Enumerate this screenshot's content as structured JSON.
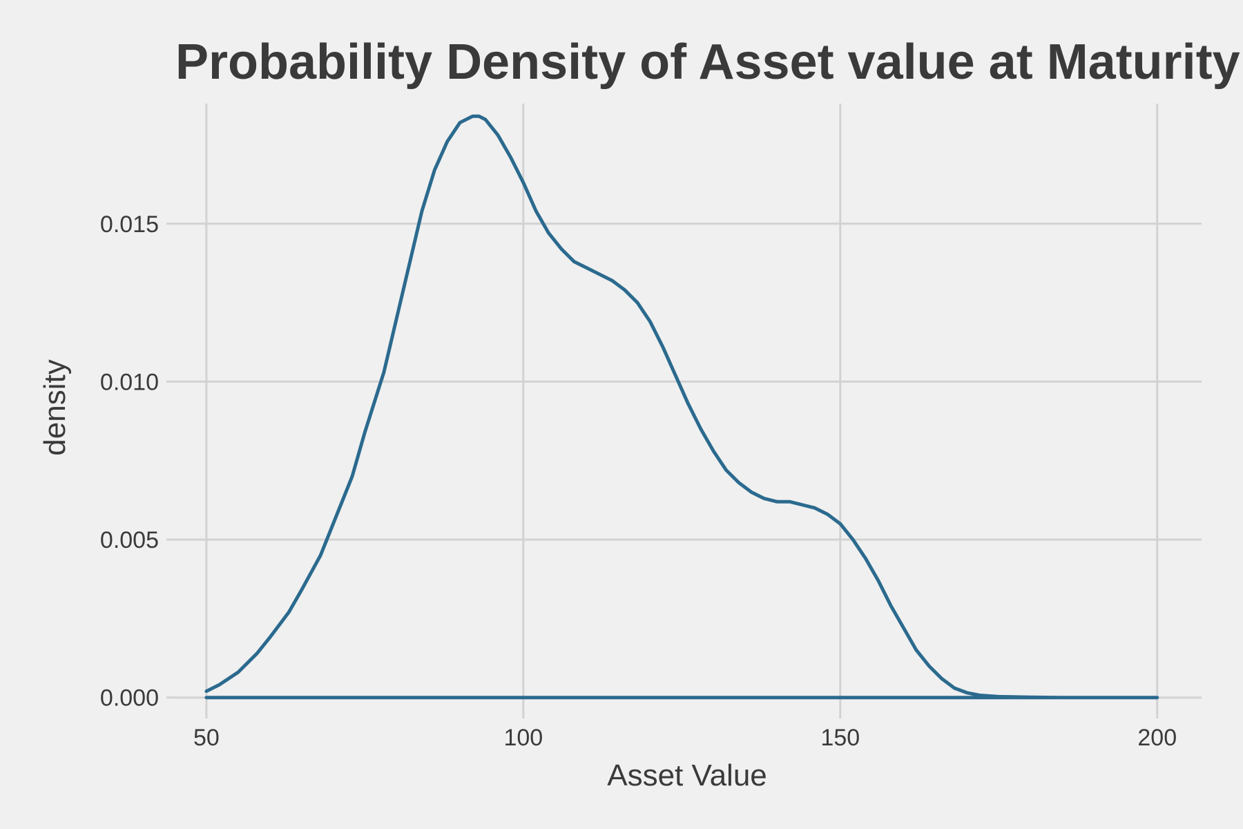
{
  "chart_data": {
    "type": "line",
    "title": "Probability Density of Asset value at Maturity",
    "xlabel": "Asset Value",
    "ylabel": "density",
    "xlim": [
      45,
      207
    ],
    "ylim": [
      -0.0004,
      0.0188
    ],
    "x_ticks": [
      50,
      100,
      150,
      200
    ],
    "x_tick_labels": [
      "50",
      "100",
      "150",
      "200"
    ],
    "y_ticks": [
      0.0,
      0.005,
      0.01,
      0.015
    ],
    "y_tick_labels": [
      "0.000",
      "0.005",
      "0.010",
      "0.015"
    ],
    "grid": true,
    "legend": "none",
    "line_color": "#2b6a8e",
    "series": [
      {
        "x": [
          50,
          52,
          55,
          58,
          60,
          63,
          65,
          68,
          70,
          73,
          75,
          78,
          80,
          82,
          84,
          86,
          88,
          90,
          92,
          93,
          94,
          96,
          98,
          100,
          102,
          104,
          106,
          108,
          110,
          112,
          114,
          116,
          118,
          120,
          122,
          124,
          126,
          128,
          130,
          132,
          134,
          136,
          138,
          140,
          142,
          144,
          146,
          148,
          150,
          152,
          154,
          156,
          158,
          160,
          162,
          164,
          166,
          168,
          170,
          172,
          175,
          180,
          185,
          190,
          200,
          200,
          50
        ],
        "y": [
          0.0002,
          0.0004,
          0.0008,
          0.0014,
          0.0019,
          0.0027,
          0.0034,
          0.0045,
          0.0055,
          0.007,
          0.0084,
          0.0103,
          0.012,
          0.0137,
          0.0154,
          0.0167,
          0.0176,
          0.0182,
          0.0184,
          0.0184,
          0.0183,
          0.0178,
          0.0171,
          0.0163,
          0.0154,
          0.0147,
          0.0142,
          0.0138,
          0.0136,
          0.0134,
          0.0132,
          0.0129,
          0.0125,
          0.0119,
          0.0111,
          0.0102,
          0.0093,
          0.0085,
          0.0078,
          0.0072,
          0.0068,
          0.0065,
          0.0063,
          0.0062,
          0.0062,
          0.0061,
          0.006,
          0.0058,
          0.0055,
          0.005,
          0.0044,
          0.0037,
          0.0029,
          0.0022,
          0.0015,
          0.001,
          0.0006,
          0.0003,
          0.00015,
          7e-05,
          3e-05,
          1e-05,
          0.0,
          0.0,
          0.0,
          0.0,
          0.0
        ]
      }
    ]
  }
}
